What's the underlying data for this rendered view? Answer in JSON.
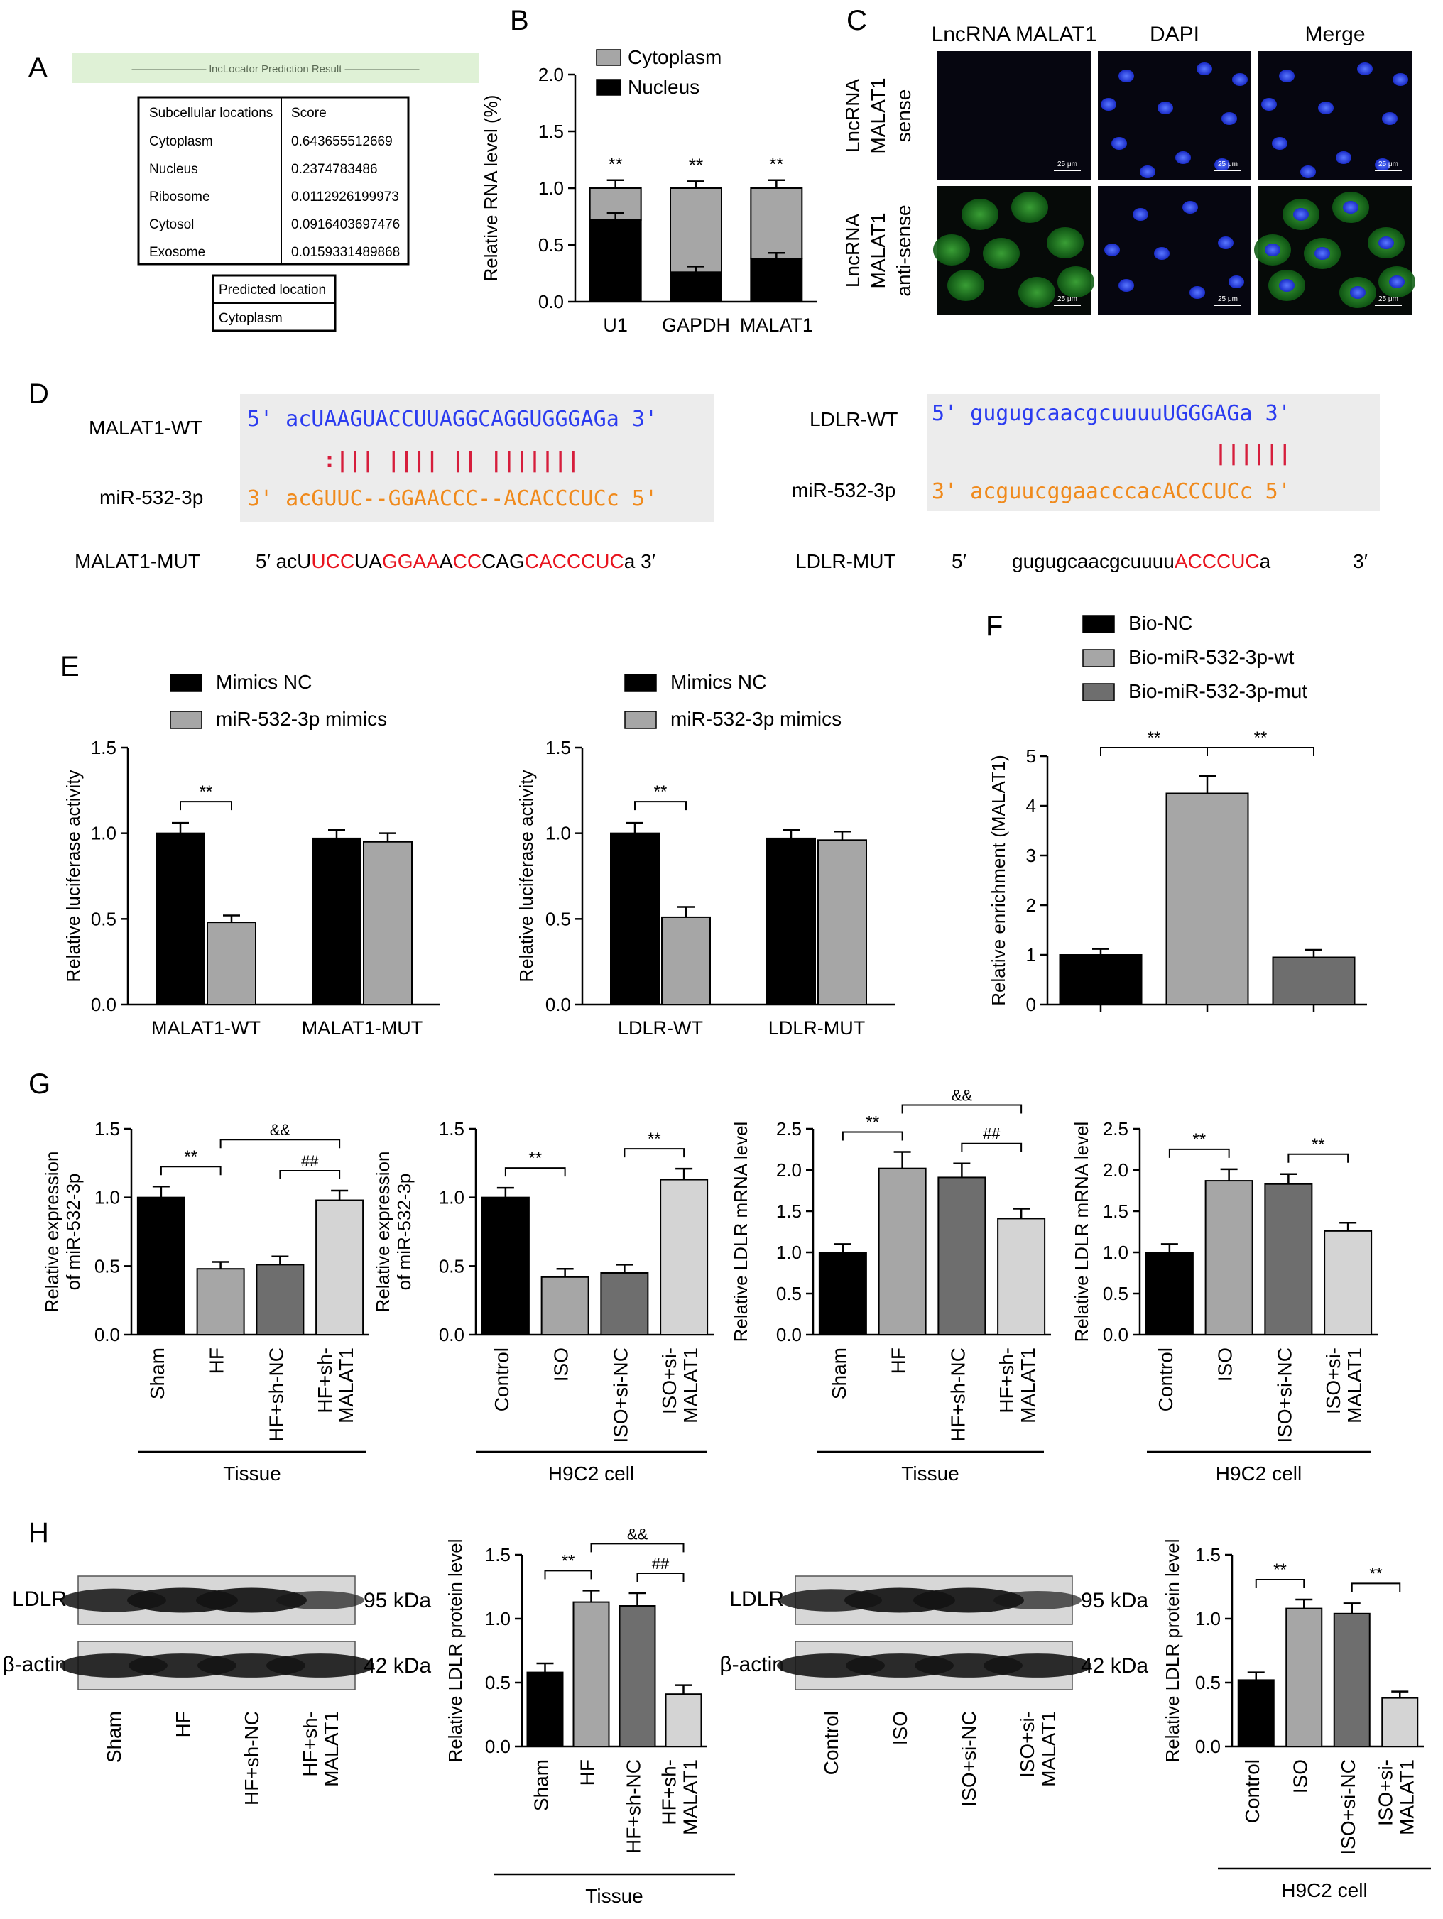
{
  "panel_letters": [
    "A",
    "B",
    "C",
    "D",
    "E",
    "F",
    "G",
    "H"
  ],
  "colors": {
    "black": "#000000",
    "light_gray": "#a6a6a6",
    "dark_gray": "#6e6e6e",
    "lightest_gray": "#d4d4d4",
    "seq_blue": "#2b3cf0",
    "seq_orange": "#f08a1c",
    "pair_red": "#d61e3c",
    "mut_red": "#e8141e",
    "table_banner": "#dff1d6"
  },
  "panel_a": {
    "banner": "lncLocator Prediction Result",
    "headers": [
      "Subcellular locations",
      "Score"
    ],
    "rows": [
      [
        "Cytoplasm",
        "0.643655512669"
      ],
      [
        "Nucleus",
        "0.2374783486"
      ],
      [
        "Ribosome",
        "0.0112926199973"
      ],
      [
        "Cytosol",
        "0.0916403697476"
      ],
      [
        "Exosome",
        "0.0159331489868"
      ]
    ],
    "predicted_header": "Predicted location",
    "predicted_value": "Cytoplasm"
  },
  "panel_c": {
    "col_titles": [
      "LncRNA MALAT1",
      "DAPI",
      "Merge"
    ],
    "row_titles": [
      [
        "LncRNA",
        "MALAT1",
        "sense"
      ],
      [
        "LncRNA",
        "MALAT1",
        "anti-sense"
      ]
    ],
    "scale_bar": "25 μm"
  },
  "panel_d": {
    "malat1_wt_label": "MALAT1-WT",
    "malat1_wt_seq": "5' acUAAGUACCUUAGGCAGGUGGGAGa 3'",
    "malat1_pairs": ":|||  ||||  ||   |||||||",
    "mir_label": "miR-532-3p",
    "malat1_mir_seq": "3' acGUUC--GGAACCC--ACACCCUCc 5'",
    "malat1_mut_label": "MALAT1-MUT",
    "malat1_mut_parts": [
      [
        "5′  acU",
        "k"
      ],
      [
        "UCC",
        "r"
      ],
      [
        "UA",
        "k"
      ],
      [
        "GGAA",
        "r"
      ],
      [
        "A",
        "k"
      ],
      [
        "CC",
        "r"
      ],
      [
        "CAG",
        "k"
      ],
      [
        "CACCCUC",
        "r"
      ],
      [
        "a  3′",
        "k"
      ]
    ],
    "ldlr_wt_label": "LDLR-WT",
    "ldlr_wt_seq": "5' gugugcaacgcuuuuUGGGAGa 3'",
    "ldlr_pairs": "||||||",
    "ldlr_mir_seq": "3' acguucggaacccacACCCUCc 5'",
    "ldlr_mut_label": "LDLR-MUT",
    "ldlr_mut_5": "5′",
    "ldlr_mut_parts": [
      [
        "gugugcaacgcuuuu",
        "k"
      ],
      [
        "ACCCUC",
        "r"
      ],
      [
        "a",
        "k"
      ]
    ],
    "ldlr_mut_3": "3′"
  },
  "wb": {
    "tissue": {
      "rows": [
        "LDLR",
        "β-actin"
      ],
      "kda": [
        "95 kDa",
        "42 kDa"
      ],
      "lanes": [
        "Sham",
        "HF",
        "HF+sh-NC",
        "HF+sh-\nMALAT1"
      ],
      "intensity": [
        [
          0.85,
          0.95,
          0.95,
          0.55
        ],
        [
          0.9,
          0.9,
          0.9,
          0.9
        ]
      ]
    },
    "cell": {
      "rows": [
        "LDLR",
        "β-actin"
      ],
      "kda": [
        "95 kDa",
        "42 kDa"
      ],
      "lanes": [
        "Control",
        "ISO",
        "ISO+si-NC",
        "ISO+si-\nMALAT1"
      ],
      "intensity": [
        [
          0.8,
          0.95,
          0.95,
          0.55
        ],
        [
          0.9,
          0.9,
          0.9,
          0.9
        ]
      ]
    }
  },
  "chart_data": [
    {
      "id": "B",
      "type": "bar",
      "stacked": true,
      "ylabel": "Relative RNA level (%)",
      "ylim": [
        0,
        2.0
      ],
      "yticks": [
        0.0,
        0.5,
        1.0,
        1.5,
        2.0
      ],
      "categories": [
        "U1",
        "GAPDH",
        "MALAT1"
      ],
      "series": [
        {
          "name": "Nucleus",
          "values": [
            0.72,
            0.26,
            0.38
          ],
          "errors": [
            0.06,
            0.05,
            0.05
          ]
        },
        {
          "name": "Cytoplasm",
          "values": [
            0.28,
            0.74,
            0.62
          ],
          "errors": [
            0.07,
            0.06,
            0.07
          ]
        }
      ],
      "legend": "top-right",
      "sig": [
        "**",
        "**",
        "**"
      ]
    },
    {
      "id": "E1",
      "type": "bar",
      "ylabel": "Relative luciferase activity",
      "ylim": [
        0,
        1.5
      ],
      "yticks": [
        0.0,
        0.5,
        1.0,
        1.5
      ],
      "categories": [
        "MALAT1-WT",
        "MALAT1-MUT"
      ],
      "series": [
        {
          "name": "Mimics NC",
          "values": [
            1.0,
            0.97
          ],
          "errors": [
            0.06,
            0.05
          ]
        },
        {
          "name": "miR-532-3p mimics",
          "values": [
            0.48,
            0.95
          ],
          "errors": [
            0.04,
            0.05
          ]
        }
      ],
      "legend": "top-left",
      "brackets": [
        [
          "0:0",
          "0:1",
          "**"
        ]
      ]
    },
    {
      "id": "E2",
      "type": "bar",
      "ylabel": "Relative luciferase activity",
      "ylim": [
        0,
        1.5
      ],
      "yticks": [
        0.0,
        0.5,
        1.0,
        1.5
      ],
      "categories": [
        "LDLR-WT",
        "LDLR-MUT"
      ],
      "series": [
        {
          "name": "Mimics NC",
          "values": [
            1.0,
            0.97
          ],
          "errors": [
            0.06,
            0.05
          ]
        },
        {
          "name": "miR-532-3p mimics",
          "values": [
            0.51,
            0.96
          ],
          "errors": [
            0.06,
            0.05
          ]
        }
      ],
      "legend": "top-left",
      "brackets": [
        [
          "0:0",
          "0:1",
          "**"
        ]
      ]
    },
    {
      "id": "F",
      "type": "bar",
      "ylabel": "Relative enrichment (MALAT1)",
      "ylim": [
        0,
        5
      ],
      "yticks": [
        0,
        1,
        2,
        3,
        4,
        5
      ],
      "categories": [
        "Bio-NC",
        "Bio-miR-532-3p-wt",
        "Bio-miR-532-3p-mut"
      ],
      "values": [
        1.0,
        4.25,
        0.95
      ],
      "errors": [
        0.12,
        0.35,
        0.15
      ],
      "legend": "top-left",
      "brackets": [
        [
          0,
          1,
          "**"
        ],
        [
          1,
          2,
          "**"
        ]
      ]
    },
    {
      "id": "G1",
      "type": "bar",
      "ylabel": "Relative expression\nof miR-532-3p",
      "ylim": [
        0,
        1.5
      ],
      "yticks": [
        0.0,
        0.5,
        1.0,
        1.5
      ],
      "categories": [
        "Sham",
        "HF",
        "HF+sh-NC",
        "HF+sh-\nMALAT1"
      ],
      "values": [
        1.0,
        0.48,
        0.51,
        0.98
      ],
      "errors": [
        0.08,
        0.05,
        0.06,
        0.07
      ],
      "group": "Tissue",
      "brackets": [
        [
          0,
          1,
          "**",
          0
        ],
        [
          1,
          3,
          "&&",
          1
        ],
        [
          2,
          3,
          "##",
          0
        ]
      ]
    },
    {
      "id": "G2",
      "type": "bar",
      "ylabel": "Relative expression\nof miR-532-3p",
      "ylim": [
        0,
        1.5
      ],
      "yticks": [
        0.0,
        0.5,
        1.0,
        1.5
      ],
      "categories": [
        "Control",
        "ISO",
        "ISO+si-NC",
        "ISO+si-\nMALAT1"
      ],
      "values": [
        1.0,
        0.42,
        0.45,
        1.13
      ],
      "errors": [
        0.07,
        0.06,
        0.06,
        0.08
      ],
      "group": "H9C2 cell",
      "brackets": [
        [
          0,
          1,
          "**",
          0
        ],
        [
          2,
          3,
          "**",
          0
        ]
      ]
    },
    {
      "id": "G3",
      "type": "bar",
      "ylabel": "Relative LDLR mRNA level",
      "ylim": [
        0,
        2.5
      ],
      "yticks": [
        0.0,
        0.5,
        1.0,
        1.5,
        2.0,
        2.5
      ],
      "categories": [
        "Sham",
        "HF",
        "HF+sh-NC",
        "HF+sh-\nMALAT1"
      ],
      "values": [
        1.0,
        2.02,
        1.91,
        1.41
      ],
      "errors": [
        0.1,
        0.2,
        0.17,
        0.12
      ],
      "group": "Tissue",
      "brackets": [
        [
          0,
          1,
          "**",
          0
        ],
        [
          1,
          3,
          "&&",
          1
        ],
        [
          2,
          3,
          "##",
          0
        ]
      ]
    },
    {
      "id": "G4",
      "type": "bar",
      "ylabel": "Relative LDLR mRNA level",
      "ylim": [
        0,
        2.5
      ],
      "yticks": [
        0.0,
        0.5,
        1.0,
        1.5,
        2.0,
        2.5
      ],
      "categories": [
        "Control",
        "ISO",
        "ISO+si-NC",
        "ISO+si-\nMALAT1"
      ],
      "values": [
        1.0,
        1.87,
        1.83,
        1.26
      ],
      "errors": [
        0.1,
        0.14,
        0.12,
        0.1
      ],
      "group": "H9C2 cell",
      "brackets": [
        [
          0,
          1,
          "**",
          0
        ],
        [
          2,
          3,
          "**",
          0
        ]
      ]
    },
    {
      "id": "H1",
      "type": "bar",
      "ylabel": "Relative LDLR protein level",
      "ylim": [
        0,
        1.5
      ],
      "yticks": [
        0.0,
        0.5,
        1.0,
        1.5
      ],
      "categories": [
        "Sham",
        "HF",
        "HF+sh-NC",
        "HF+sh-\nMALAT1"
      ],
      "values": [
        0.58,
        1.13,
        1.1,
        0.41
      ],
      "errors": [
        0.07,
        0.09,
        0.1,
        0.07
      ],
      "group": "Tissue",
      "brackets": [
        [
          0,
          1,
          "**",
          0
        ],
        [
          1,
          3,
          "&&",
          1
        ],
        [
          2,
          3,
          "##",
          0
        ]
      ]
    },
    {
      "id": "H2",
      "type": "bar",
      "ylabel": "Relative LDLR protein level",
      "ylim": [
        0,
        1.5
      ],
      "yticks": [
        0.0,
        0.5,
        1.0,
        1.5
      ],
      "categories": [
        "Control",
        "ISO",
        "ISO+si-NC",
        "ISO+si-\nMALAT1"
      ],
      "values": [
        0.52,
        1.08,
        1.04,
        0.38
      ],
      "errors": [
        0.06,
        0.07,
        0.08,
        0.05
      ],
      "group": "H9C2 cell",
      "brackets": [
        [
          0,
          1,
          "**",
          0
        ],
        [
          2,
          3,
          "**",
          0
        ]
      ]
    }
  ]
}
